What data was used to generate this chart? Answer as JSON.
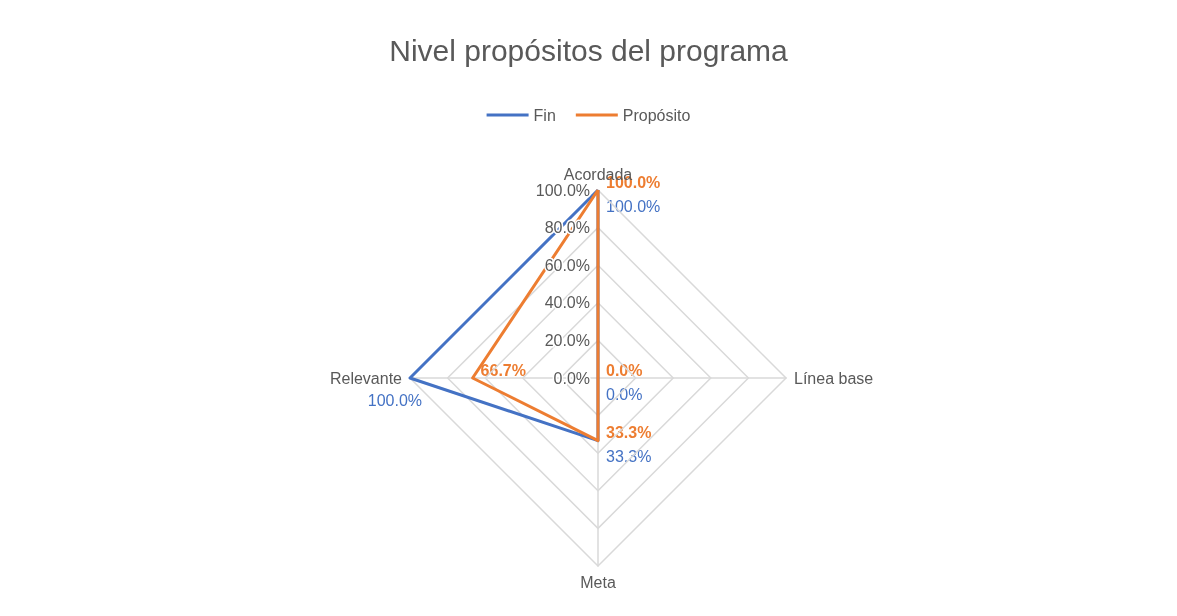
{
  "chart_data": {
    "type": "radar",
    "title": "Nivel propósitos del programa",
    "categories": [
      "Acordada",
      "Línea base",
      "Meta",
      "Relevante"
    ],
    "series": [
      {
        "name": "Fin",
        "color": "#4472c4",
        "values": [
          100,
          0,
          33.3,
          100
        ],
        "value_labels": [
          "100.0%",
          "0.0%",
          "33.3%",
          "100.0%"
        ]
      },
      {
        "name": "Propósito",
        "color": "#ed7d31",
        "values": [
          100,
          0,
          33.3,
          66.7
        ],
        "value_labels": [
          "100.0%",
          "0.0%",
          "33.3%",
          "66.7%"
        ]
      }
    ],
    "ylim": [
      0,
      100
    ],
    "yticks": [
      {
        "value": 0,
        "label": "0.0%"
      },
      {
        "value": 20,
        "label": "20.0%"
      },
      {
        "value": 40,
        "label": "40.0%"
      },
      {
        "value": 60,
        "label": "60.0%"
      },
      {
        "value": 80,
        "label": "80.0%"
      },
      {
        "value": 100,
        "label": "100.0%"
      }
    ],
    "legend": "top",
    "marker": "none",
    "line_style": "solid"
  }
}
